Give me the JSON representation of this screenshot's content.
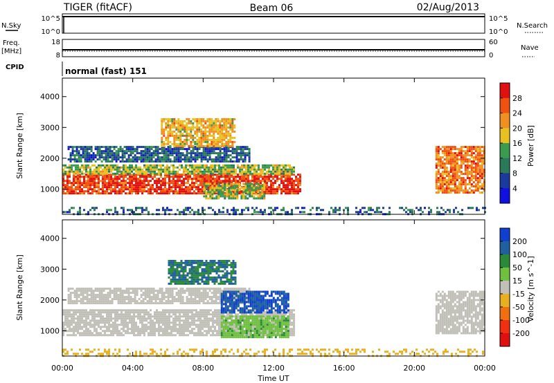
{
  "header": {
    "radar": "TIGER (fitACF)",
    "beam": "Beam 06",
    "date": "02/Aug/2013"
  },
  "strips": {
    "nsky": {
      "label": "N.Sky",
      "ticks": [
        "10^5",
        "10^0"
      ]
    },
    "nsearch": {
      "label": "N.Search",
      "ticks": [
        "10^5",
        "10^0"
      ]
    },
    "freq": {
      "label_line1": "Freq.",
      "label_line2": "[MHz]",
      "ticks": [
        "18",
        "8"
      ]
    },
    "nave": {
      "label": "Nave",
      "ticks": [
        "60",
        "0"
      ]
    },
    "cpid": {
      "label": "CPID",
      "value": "normal (fast) 151"
    }
  },
  "colors": {
    "power": [
      "#1010e0",
      "#1c3a9e",
      "#2a7a5a",
      "#3a9a50",
      "#e8c020",
      "#f09020",
      "#f05010",
      "#e01010"
    ],
    "velocity": [
      "#1040d0",
      "#2060a0",
      "#2a8a3a",
      "#70c040",
      "#c0c0b8",
      "#e8b020",
      "#f07010",
      "#f03010",
      "#e01010"
    ]
  },
  "chart_data": [
    {
      "type": "heatmap",
      "title": "Power",
      "ylabel": "Slant Range [km]",
      "colorbar_label": "Power [dB]",
      "colorbar_ticks": [
        "28",
        "24",
        "20",
        "16",
        "12",
        "8",
        "4"
      ],
      "ylim": [
        180,
        4600
      ],
      "y_ticks": [
        "1000",
        "2000",
        "3000",
        "4000"
      ],
      "x_ticks": [
        "00:00",
        "04:00",
        "08:00",
        "12:00",
        "16:00",
        "20:00",
        "00:00"
      ],
      "xlim_hours": [
        0,
        24
      ],
      "echo_regions_dB": [
        {
          "t0": 0.0,
          "t1": 13.5,
          "r0": 850,
          "r1": 1500,
          "power_dB": 28
        },
        {
          "t0": 0.0,
          "t1": 13.2,
          "r0": 1500,
          "r1": 1800,
          "power_dB": 16
        },
        {
          "t0": 0.3,
          "t1": 10.6,
          "r0": 1900,
          "r1": 2400,
          "power_dB": 8
        },
        {
          "t0": 5.6,
          "t1": 9.8,
          "r0": 2400,
          "r1": 3300,
          "power_dB": 20
        },
        {
          "t0": 8.0,
          "t1": 11.5,
          "r0": 700,
          "r1": 1200,
          "power_dB": 16
        },
        {
          "t0": 21.2,
          "t1": 24.0,
          "r0": 900,
          "r1": 2400,
          "power_dB": 24
        },
        {
          "t0": 0.0,
          "t1": 24.0,
          "r0": 180,
          "r1": 420,
          "power_dB": 8
        }
      ]
    },
    {
      "type": "heatmap",
      "title": "Velocity",
      "xlabel": "Time UT",
      "ylabel": "Slant Range [km]",
      "colorbar_label": "Velocity [m s^-1]",
      "colorbar_ticks": [
        "200",
        "100",
        "50",
        "15",
        "-15",
        "-50",
        "-100",
        "-200"
      ],
      "ylim": [
        180,
        4600
      ],
      "y_ticks": [
        "1000",
        "2000",
        "3000",
        "4000"
      ],
      "x_ticks": [
        "00:00",
        "04:00",
        "08:00",
        "12:00",
        "16:00",
        "20:00",
        "00:00"
      ],
      "xlim_hours": [
        0,
        24
      ],
      "echo_regions_ms": [
        {
          "t0": 0.0,
          "t1": 13.2,
          "r0": 850,
          "r1": 1700,
          "velocity": 0
        },
        {
          "t0": 0.3,
          "t1": 10.6,
          "r0": 1900,
          "r1": 2400,
          "velocity": 0
        },
        {
          "t0": 9.0,
          "t1": 12.8,
          "r0": 800,
          "r1": 1500,
          "velocity": 40
        },
        {
          "t0": 9.0,
          "t1": 12.8,
          "r0": 1600,
          "r1": 2300,
          "velocity": 200
        },
        {
          "t0": 6.0,
          "t1": 9.8,
          "r0": 2500,
          "r1": 3300,
          "velocity": 100
        },
        {
          "t0": 21.2,
          "t1": 24.0,
          "r0": 900,
          "r1": 2300,
          "velocity": 0
        },
        {
          "t0": 0.0,
          "t1": 24.0,
          "r0": 180,
          "r1": 420,
          "velocity": -30
        }
      ]
    }
  ]
}
